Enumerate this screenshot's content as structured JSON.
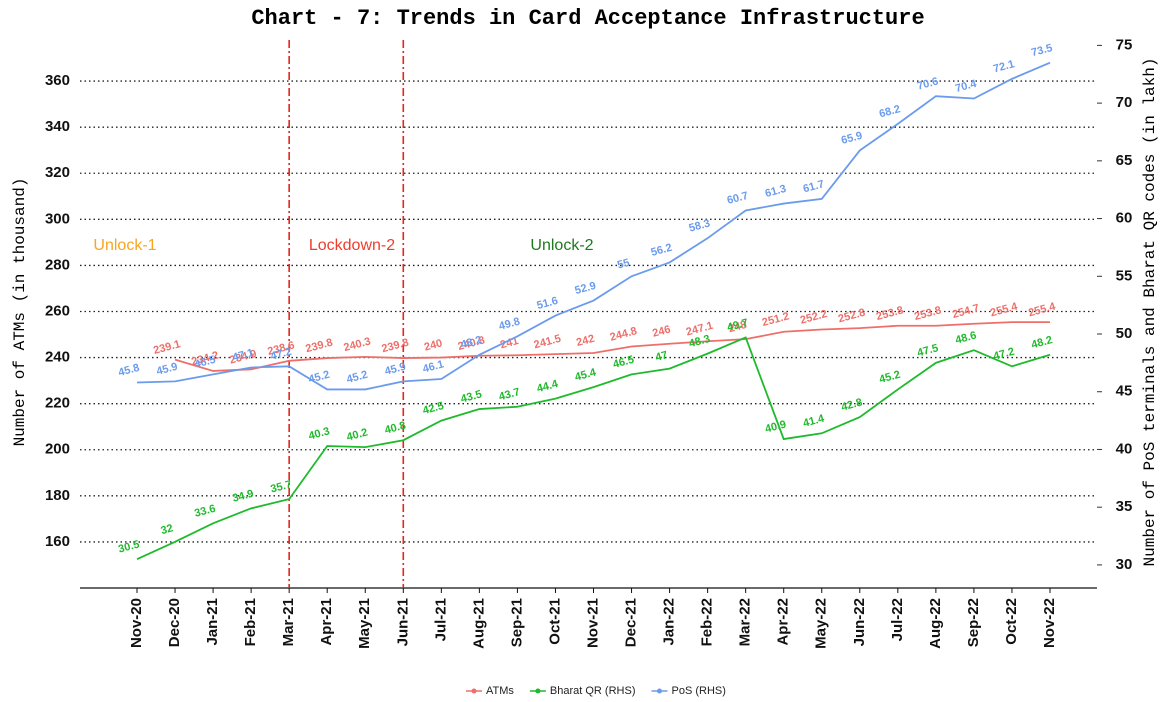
{
  "chart_data": {
    "type": "line",
    "title": "Chart - 7: Trends in Card Acceptance Infrastructure",
    "y_label": "Number of ATMs (in thousand)",
    "y2_label": "Number of PoS terminals and Bharat QR codes (in lakh)",
    "categories": [
      "Nov-20",
      "Dec-20",
      "Jan-21",
      "Feb-21",
      "Mar-21",
      "Apr-21",
      "May-21",
      "Jun-21",
      "Jul-21",
      "Aug-21",
      "Sep-21",
      "Oct-21",
      "Nov-21",
      "Dec-21",
      "Jan-22",
      "Feb-22",
      "Mar-22",
      "Apr-22",
      "May-22",
      "Jun-22",
      "Jul-22",
      "Aug-22",
      "Sep-22",
      "Oct-22",
      "Nov-22"
    ],
    "series": [
      {
        "name": "ATMs",
        "color": "#ee6f6a",
        "axis": "y",
        "values": [
          null,
          239.1,
          234.2,
          234.9,
          238.6,
          239.8,
          240.3,
          239.8,
          240,
          240.8,
          241,
          241.5,
          242,
          244.8,
          246,
          247.1,
          248,
          251.2,
          252.2,
          252.8,
          253.8,
          253.8,
          254.7,
          255.4,
          255.4
        ]
      },
      {
        "name": "Bharat QR (RHS)",
        "color": "#1fba2c",
        "axis": "y2",
        "values": [
          30.5,
          32,
          33.6,
          34.9,
          35.7,
          40.3,
          40.2,
          40.8,
          42.5,
          43.5,
          43.7,
          44.4,
          45.4,
          46.5,
          47,
          48.3,
          49.7,
          40.9,
          41.4,
          42.8,
          45.2,
          47.5,
          48.6,
          47.2,
          48.2
        ]
      },
      {
        "name": "PoS (RHS)",
        "color": "#6b9bec",
        "axis": "y2",
        "values": [
          45.8,
          45.9,
          46.5,
          47.1,
          47.2,
          45.2,
          45.2,
          45.9,
          46.1,
          48.2,
          49.8,
          51.6,
          52.9,
          55,
          56.2,
          58.3,
          60.7,
          61.3,
          61.7,
          65.9,
          68.2,
          70.6,
          70.4,
          72.1,
          73.5
        ]
      }
    ],
    "ylim": [
      140,
      380
    ],
    "yticks": [
      160,
      180,
      200,
      220,
      240,
      260,
      280,
      300,
      320,
      340,
      360
    ],
    "y2lim": [
      28,
      75.9
    ],
    "y2ticks": [
      30,
      35,
      40,
      45,
      50,
      55,
      60,
      65,
      70,
      75
    ],
    "grid": true,
    "legend": "bottom",
    "vlines": [
      "Mar-21",
      "Jun-21"
    ],
    "annotations": [
      {
        "text": "Unlock-1",
        "color": "#f5a623"
      },
      {
        "text": "Lockdown-2",
        "color": "#f03c2c"
      },
      {
        "text": "Unlock-2",
        "color": "#1e7a1e"
      }
    ]
  }
}
